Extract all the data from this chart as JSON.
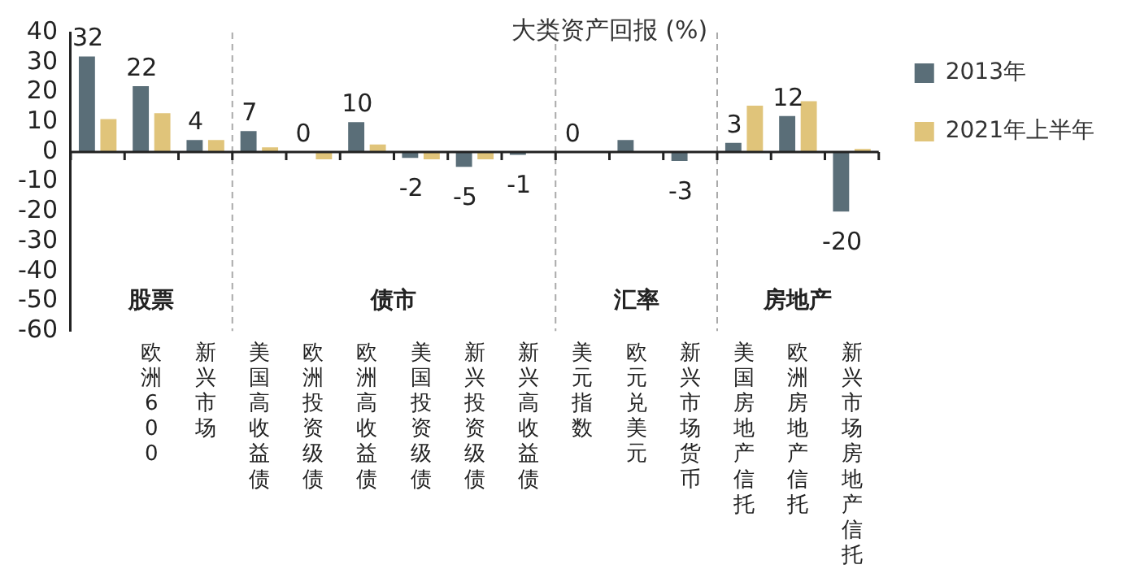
{
  "chart_data": {
    "type": "bar",
    "title": "大类资产回报 (%)",
    "categories": [
      null,
      "欧洲 600",
      "新兴市场",
      "美国高收益债",
      "欧洲投资级债",
      "欧洲高收益债",
      "美国投资级债",
      "新兴投资级债",
      "新兴高收益债",
      "美元指数",
      "欧元兑美元",
      "新兴市场货币",
      "美国房地产信托",
      "欧洲房地产信托",
      "新兴市场房地产信托"
    ],
    "series": [
      {
        "name": "2013年",
        "color": "#5a6e78",
        "values": [
          32,
          22,
          4,
          7,
          0,
          10,
          -2,
          -5,
          -1,
          0,
          4,
          -3,
          3,
          12,
          -20
        ],
        "value_labels": [
          "32",
          "22",
          "4",
          "7",
          "0",
          "10",
          "-2",
          "-5",
          "-1",
          "0",
          null,
          "-3",
          "3",
          "12",
          "-20"
        ]
      },
      {
        "name": "2021年上半年",
        "color": "#e0c47a",
        "values": [
          11,
          13,
          4,
          1.5,
          -2.5,
          2.5,
          -2.5,
          -2.5,
          null,
          null,
          null,
          null,
          15.5,
          17,
          1
        ]
      }
    ],
    "ylim": [
      -60,
      40
    ],
    "yticks": [
      -60,
      -50,
      -40,
      -30,
      -20,
      -10,
      0,
      10,
      20,
      30,
      40
    ],
    "grid": false,
    "legend": "top right",
    "annotations": [
      "股票",
      "债市",
      "汇率",
      "房地产"
    ]
  }
}
